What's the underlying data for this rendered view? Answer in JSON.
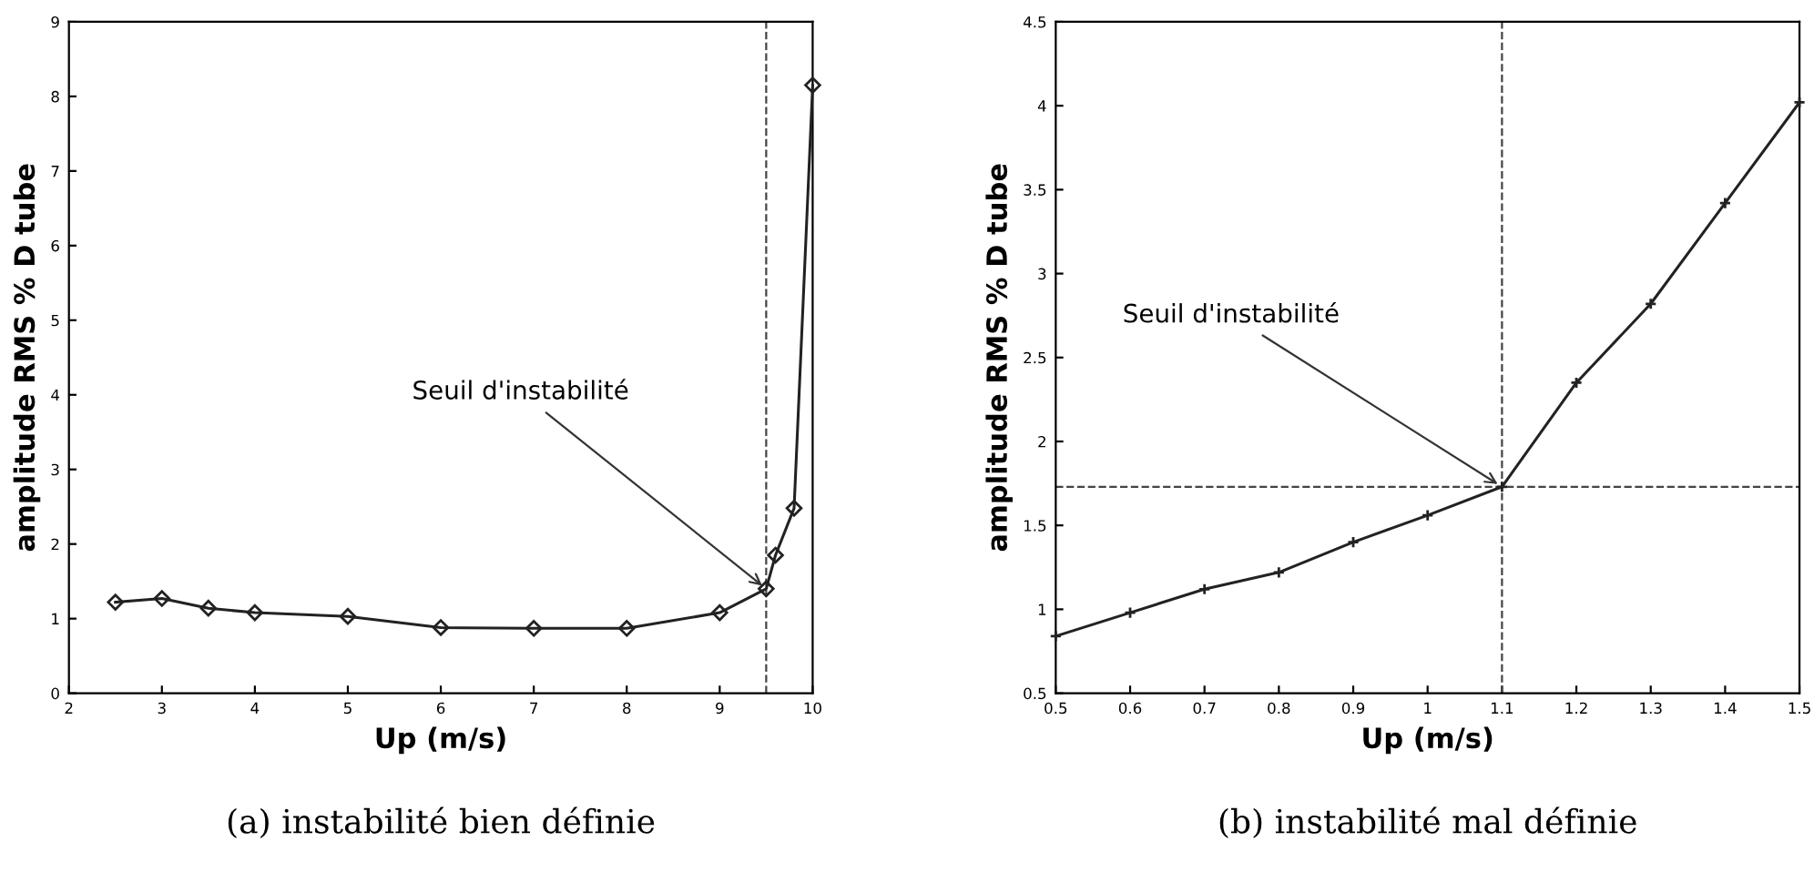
{
  "chart_data": [
    {
      "type": "line",
      "xlabel": "Up (m/s)",
      "ylabel": "amplitude RMS % D tube",
      "x": [
        2.5,
        3,
        3.5,
        4,
        5,
        6,
        7,
        8,
        9,
        9.5,
        9.6,
        9.8,
        10
      ],
      "series": [
        {
          "color": "#222222",
          "values": [
            1.22,
            1.27,
            1.14,
            1.08,
            1.03,
            0.88,
            0.87,
            0.87,
            1.08,
            1.4,
            1.85,
            2.48,
            8.15
          ]
        }
      ],
      "xlim": [
        2,
        10
      ],
      "ylim": [
        0,
        9
      ],
      "xticks": [
        2,
        3,
        4,
        5,
        6,
        7,
        8,
        9,
        10
      ],
      "yticks": [
        0,
        1,
        2,
        3,
        4,
        5,
        6,
        7,
        8,
        9
      ],
      "grid": false,
      "marker": "diamond",
      "line_style": "solid",
      "ref_lines": [
        {
          "axis": "x",
          "value": 9.5,
          "line_style": "dashed",
          "color": "#444444"
        }
      ],
      "annotations": [
        {
          "text": "Seuil d'instabilité",
          "x": 9.5,
          "y": 1.4
        },
        "(a) instabilité bien définie"
      ]
    },
    {
      "type": "line",
      "xlabel": "Up (m/s)",
      "ylabel": "amplitude RMS % D tube",
      "x": [
        0.5,
        0.6,
        0.7,
        0.8,
        0.9,
        1.0,
        1.1,
        1.2,
        1.3,
        1.4,
        1.5
      ],
      "series": [
        {
          "color": "#222222",
          "values": [
            0.84,
            0.98,
            1.12,
            1.22,
            1.4,
            1.56,
            1.73,
            2.35,
            2.82,
            3.42,
            4.02
          ]
        }
      ],
      "xlim": [
        0.5,
        1.5
      ],
      "ylim": [
        0.5,
        4.5
      ],
      "xticks": [
        0.5,
        0.6,
        0.7,
        0.8,
        0.9,
        1,
        1.1,
        1.2,
        1.3,
        1.4,
        1.5
      ],
      "yticks": [
        0.5,
        1,
        1.5,
        2,
        2.5,
        3,
        3.5,
        4,
        4.5
      ],
      "grid": false,
      "marker": "cross",
      "line_style": "solid",
      "ref_lines": [
        {
          "axis": "x",
          "value": 1.1,
          "line_style": "dashed",
          "color": "#444444"
        },
        {
          "axis": "y",
          "value": 1.73,
          "line_style": "dashed",
          "color": "#444444"
        }
      ],
      "annotations": [
        {
          "text": "Seuil d'instabilité",
          "x": 1.1,
          "y": 1.73
        },
        "(b) instabilité mal définie"
      ]
    }
  ]
}
